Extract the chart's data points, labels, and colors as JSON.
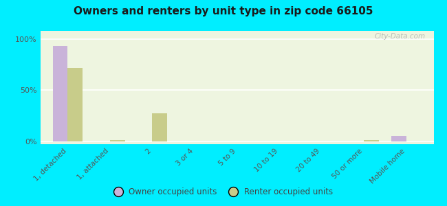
{
  "title": "Owners and renters by unit type in zip code 66105",
  "categories": [
    "1, detached",
    "1, attached",
    "2",
    "3 or 4",
    "5 to 9",
    "10 to 19",
    "20 to 49",
    "50 or more",
    "Mobile home"
  ],
  "owner_values": [
    93,
    0,
    0,
    0,
    0,
    0,
    0,
    0,
    5
  ],
  "renter_values": [
    72,
    1,
    27,
    0,
    0,
    0,
    0,
    1,
    0
  ],
  "owner_color": "#c9b3d9",
  "renter_color": "#c8cc8a",
  "bg_color": "#00eeff",
  "plot_bg": "#eef5e0",
  "yticks": [
    0,
    50,
    100
  ],
  "ytick_labels": [
    "0%",
    "50%",
    "100%"
  ],
  "bar_width": 0.35,
  "legend_owner": "Owner occupied units",
  "legend_renter": "Renter occupied units",
  "watermark": "City-Data.com"
}
